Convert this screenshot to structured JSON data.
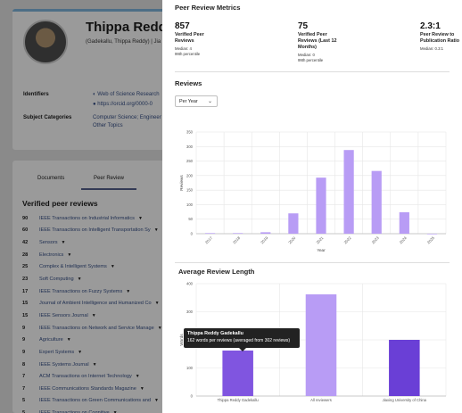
{
  "profile": {
    "name": "Thippa Reddy G",
    "alias": "(Gadekallu, Thippa Reddy) | Jia",
    "identifiers_label": "Identifiers",
    "identifier_wos": "Web of Science Research",
    "identifier_orcid": "https://orcid.org/0000-0",
    "subject_label": "Subject Categories",
    "subject_line1": "Computer Science; Engineer",
    "subject_line2": "Other Topics"
  },
  "tabs": {
    "documents": "Documents",
    "peer_review": "Peer Review"
  },
  "verified_section": {
    "title": "Verified peer reviews",
    "items": [
      {
        "count": "90",
        "journal": "IEEE Transactions on Industrial Informatics"
      },
      {
        "count": "60",
        "journal": "IEEE Transactions on Intelligent Transportation Sy"
      },
      {
        "count": "42",
        "journal": "Sensors"
      },
      {
        "count": "28",
        "journal": "Electronics"
      },
      {
        "count": "25",
        "journal": "Complex & Intelligent Systems"
      },
      {
        "count": "23",
        "journal": "Soft Computing"
      },
      {
        "count": "17",
        "journal": "IEEE Transactions on Fuzzy Systems"
      },
      {
        "count": "15",
        "journal": "Journal of Ambient Intelligence and Humanized Co"
      },
      {
        "count": "15",
        "journal": "IEEE Sensors Journal"
      },
      {
        "count": "9",
        "journal": "IEEE Transactions on Network and Service Manage"
      },
      {
        "count": "9",
        "journal": "Agriculture"
      },
      {
        "count": "9",
        "journal": "Expert Systems"
      },
      {
        "count": "8",
        "journal": "IEEE Systems Journal"
      },
      {
        "count": "7",
        "journal": "ACM Transactions on Internet Technology"
      },
      {
        "count": "7",
        "journal": "IEEE Communications Standards Magazine"
      },
      {
        "count": "5",
        "journal": "IEEE Transactions on Green Communications and"
      },
      {
        "count": "5",
        "journal": "IEEE Transactions on Cognitive"
      }
    ]
  },
  "metrics": {
    "title": "Peer Review Metrics",
    "m1": {
      "value": "857",
      "label1": "Verified Peer",
      "label2": "Reviews",
      "sub1": "Median: 4",
      "sub2": "99th percentile"
    },
    "m2": {
      "value": "75",
      "label1": "Verified Peer",
      "label2": "Reviews (Last 12",
      "label3": "Months)",
      "sub1": "Median: 0",
      "sub2": "99th percentile"
    },
    "m3": {
      "value": "2.3:1",
      "label1": "Peer Review to",
      "label2": "Publication Ratio",
      "sub1": "Median: 0.3:1"
    }
  },
  "reviews": {
    "title": "Reviews",
    "select_value": "Per Year"
  },
  "avg_length": {
    "title": "Average Review Length"
  },
  "tooltip": {
    "name": "Thippa Reddy Gadekallu",
    "text": "162 words per reviews (averaged from 302 reviews)"
  },
  "colors": {
    "bar_light": "#b89cf5",
    "bar_dark": "#6a3fd6",
    "bar_mid": "#8055e0"
  },
  "chart_data": [
    {
      "type": "bar",
      "title": "Reviews",
      "xlabel": "Year",
      "ylabel": "Reviews",
      "categories": [
        "2017",
        "2018",
        "2019",
        "2020",
        "2021",
        "2022",
        "2023",
        "2024",
        "2025"
      ],
      "values": [
        2,
        2,
        5,
        70,
        193,
        288,
        216,
        74,
        0
      ],
      "ylim": [
        0,
        350
      ],
      "yticks": [
        0,
        50,
        100,
        150,
        200,
        250,
        300,
        350
      ],
      "grid": true
    },
    {
      "type": "bar",
      "title": "Average Review Length",
      "xlabel": "",
      "ylabel": "Words",
      "categories": [
        "Thippa Reddy Gadekallu",
        "All reviewers",
        "Jiaxing University of China"
      ],
      "values": [
        162,
        362,
        200
      ],
      "ylim": [
        0,
        400
      ],
      "yticks": [
        0,
        100,
        200,
        300,
        400
      ],
      "grid": true
    }
  ]
}
